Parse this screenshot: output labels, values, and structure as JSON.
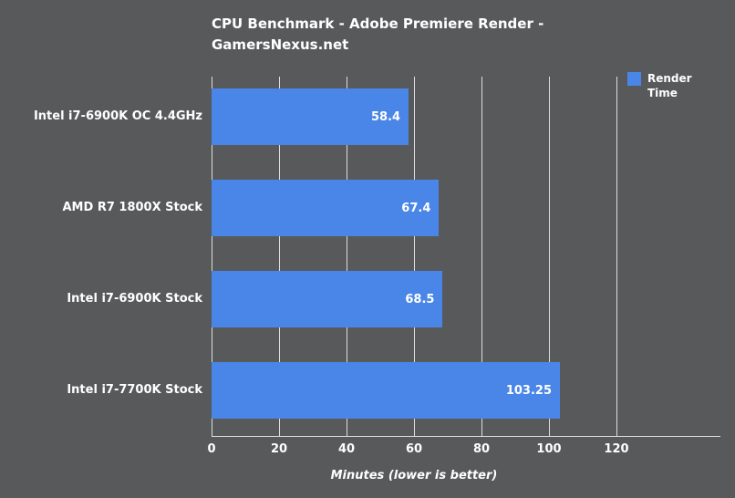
{
  "chart": {
    "title_lines": [
      "CPU Benchmark - Adobe Premiere Render -",
      "GamersNexus.net"
    ]
  },
  "chart_data": {
    "type": "bar",
    "orientation": "horizontal",
    "title": "CPU Benchmark - Adobe Premiere Render - GamersNexus.net",
    "series_name": "Render Time",
    "categories": [
      "Intel i7-6900K OC 4.4GHz",
      "AMD R7 1800X Stock",
      "Intel i7-6900K Stock",
      "Intel i7-7700K Stock"
    ],
    "values": [
      58.4,
      67.4,
      68.5,
      103.25
    ],
    "value_labels": [
      "58.4",
      "67.4",
      "68.5",
      "103.25"
    ],
    "xlabel": "Minutes (lower is better)",
    "ylabel": "",
    "xlim": [
      0,
      120
    ],
    "xticks": [
      0,
      20,
      40,
      60,
      80,
      100,
      120
    ],
    "grid": true,
    "legend_position": "top-right",
    "colors": {
      "bar": "#4a86e8",
      "background": "#58595b",
      "gridline": "#dddddd",
      "text": "#ffffff"
    }
  }
}
